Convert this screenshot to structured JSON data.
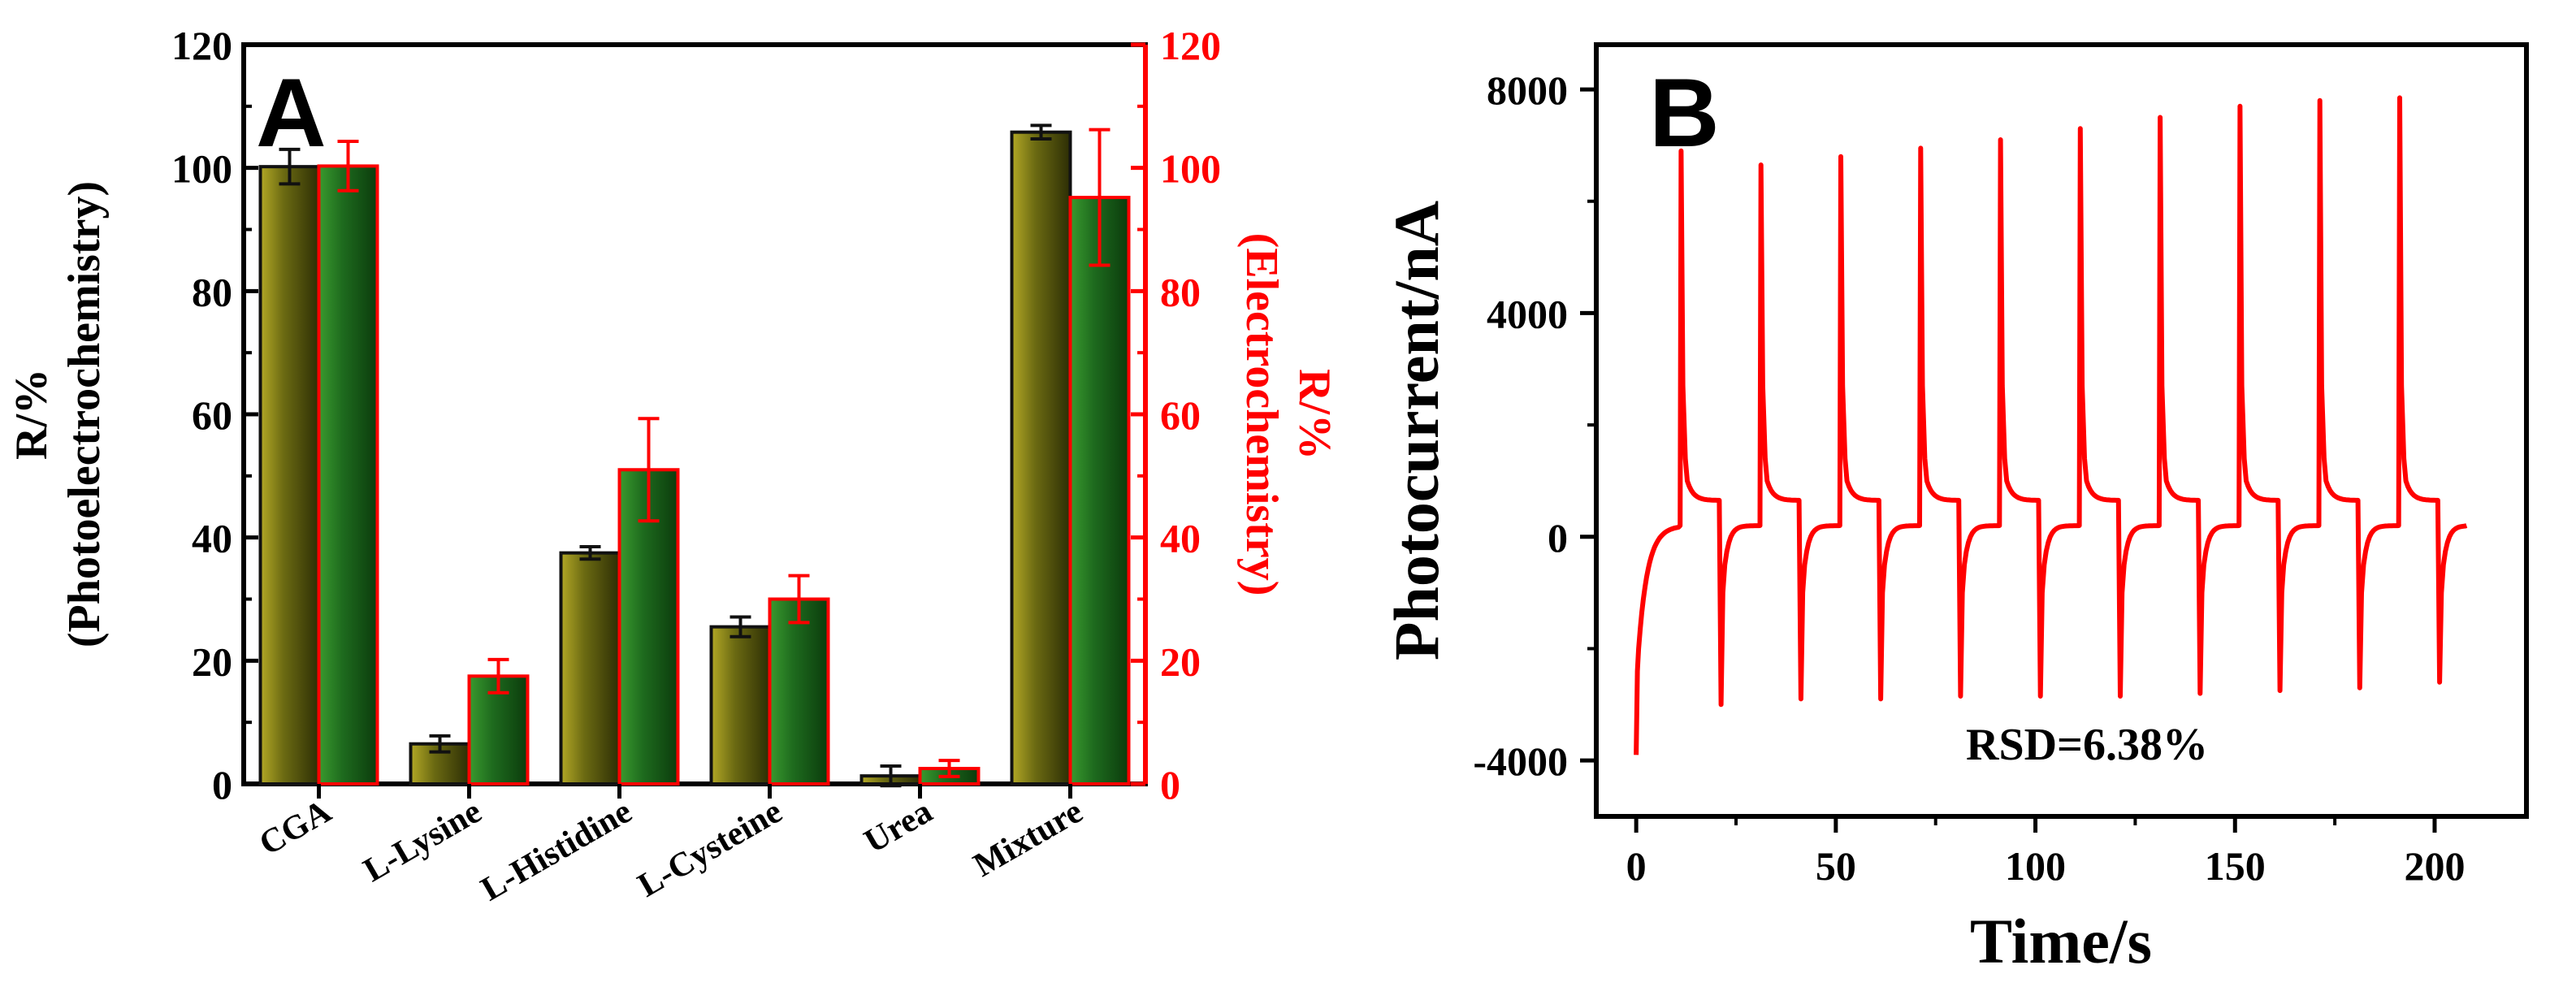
{
  "chart_data": [
    {
      "panel": "A",
      "type": "bar",
      "categories": [
        "CGA",
        "L-Lysine",
        "L-Histidine",
        "L-Cysteine",
        "Urea",
        "Mixture"
      ],
      "series": [
        {
          "name": "Photoelectrochemistry",
          "axis": "left",
          "values": [
            100.2,
            6.5,
            37.5,
            25.5,
            1.3,
            105.8
          ],
          "errors": [
            2.8,
            1.3,
            1.0,
            1.6,
            1.6,
            1.1
          ],
          "color": "#6b6a12",
          "edge": "#111111"
        },
        {
          "name": "Electrochemistry",
          "axis": "right",
          "values": [
            100.3,
            17.5,
            51.0,
            30.0,
            2.5,
            95.2
          ],
          "errors": [
            4.0,
            2.7,
            8.3,
            3.8,
            1.3,
            11.0
          ],
          "color": "#1e6b1e",
          "edge": "#ff0000"
        }
      ],
      "ylabel_left": [
        "R/%",
        "(Photoelectrochemistry)"
      ],
      "ylabel_right": [
        "R/%",
        "(Electrochemistry)"
      ],
      "ylim": [
        0,
        120
      ],
      "yticks": [
        0,
        20,
        40,
        60,
        80,
        100,
        120
      ],
      "ytick_labels": [
        "0",
        "20",
        "40",
        "60",
        "80",
        "100",
        "120"
      ],
      "label_color_right": "#ff0000"
    },
    {
      "panel": "B",
      "type": "line",
      "xlabel": "Time/s",
      "ylabel": "Photocurrent/nA",
      "xlim": [
        -10,
        223
      ],
      "ylim": [
        -5000,
        8800
      ],
      "xticks": [
        0,
        50,
        100,
        150,
        200
      ],
      "xtick_labels": [
        "0",
        "50",
        "100",
        "150",
        "200"
      ],
      "yticks": [
        -4000,
        0,
        4000,
        8000
      ],
      "ytick_labels": [
        "-4000",
        "0",
        "4000",
        "8000"
      ],
      "annotation": "RSD=6.38%",
      "line_color": "#ff0000",
      "series": [
        {
          "name": "Photocurrent",
          "on_times": [
            11,
            31,
            51,
            71,
            91,
            111,
            131,
            151,
            171,
            191
          ],
          "off_times": [
            21,
            41,
            61,
            81,
            101,
            121,
            141,
            161,
            181,
            201
          ],
          "on_peaks": [
            6900,
            6650,
            6800,
            6950,
            7100,
            7300,
            7500,
            7700,
            7800,
            7850
          ],
          "off_dips": [
            -3000,
            -2900,
            -2900,
            -2850,
            -2850,
            -2850,
            -2800,
            -2750,
            -2700,
            -2600
          ],
          "start_value": -3900,
          "end_time": 208,
          "end_value": 200,
          "plateau_on": 650,
          "baseline_off": 200
        }
      ]
    }
  ],
  "panel_letters": {
    "a": "A",
    "b": "B"
  }
}
